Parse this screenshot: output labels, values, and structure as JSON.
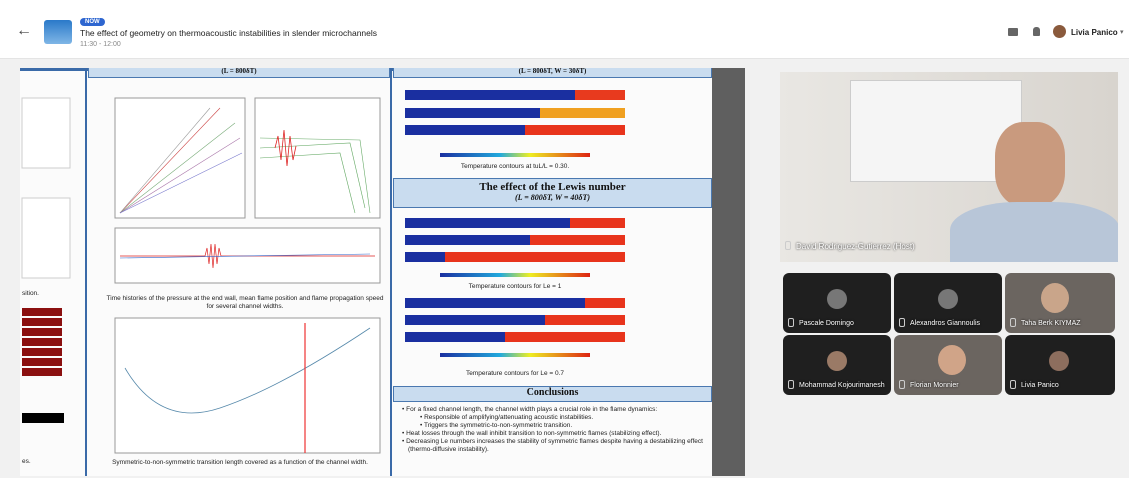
{
  "header": {
    "badge": "NOW",
    "title": "The effect of geometry on thermoacoustic instabilities in slender microchannels",
    "time": "11:30 - 12:00",
    "user": "Livia Panico"
  },
  "poster": {
    "left_fragments": [
      "sition.",
      "es."
    ],
    "mid_heading": "(L = 800δT)",
    "right_heading": "(L = 800δT, W = 30δT)",
    "caption_1": "Time histories of the pressure at the end wall, mean flame position and flame propagation speed for several channel widths.",
    "caption_2": "Symmetric-to-non-symmetric transition length covered as a function of the channel width.",
    "contour_caption_1": "Temperature contours at tuL/L = 0.30.",
    "lewis_title": "The effect of the Lewis number",
    "lewis_subtitle": "(L = 800δT, W = 40δT)",
    "contour_caption_2": "Temperature contours for Le = 1",
    "contour_caption_3": "Temperature contours for Le = 0.7",
    "conclusions_title": "Conclusions",
    "conclusions": [
      {
        "text": "For a fixed channel length, the channel width plays a crucial role in the flame dynamics:",
        "sub": [
          "Responsible of amplifying/attenuating acoustic instabilities.",
          "Triggers the symmetric-to-non-symmetric transition."
        ]
      },
      {
        "text": "Heat losses through the wall inhibit transition to non-symmetric flames (stabilizing effect)."
      },
      {
        "text": "Decreasing Le numbers increases the stability of symmetric flames despite having a destabilizing effect (thermo-diffusive instability)."
      }
    ]
  },
  "participants": {
    "host": "David Rodriguez-Gutierrez (Host)",
    "tiles": [
      "Pascale Domingo",
      "Alexandros Giannoulis",
      "Taha Berk KIYMAZ",
      "Mohammad Kojourimanesh",
      "Florian Monnier",
      "Livia Panico"
    ]
  }
}
